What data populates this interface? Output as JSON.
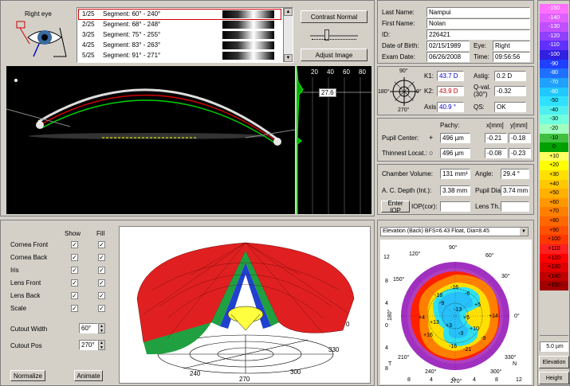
{
  "eye_panel": {
    "label": "Right eye"
  },
  "segments": [
    {
      "num": "1/25",
      "label": "Segment: 60° - 240°",
      "selected": true
    },
    {
      "num": "2/25",
      "label": "Segment: 68° - 248°",
      "selected": false
    },
    {
      "num": "3/25",
      "label": "Segment: 75° - 255°",
      "selected": false
    },
    {
      "num": "4/25",
      "label": "Segment: 83° - 263°",
      "selected": false
    },
    {
      "num": "5/25",
      "label": "Segment: 91° - 271°",
      "selected": false
    }
  ],
  "buttons": {
    "contrast": "Contrast Normal",
    "adjust": "Adjust Image",
    "normalize": "Normalize",
    "animate": "Animate",
    "enter_iop": "Enter IOP"
  },
  "densito": {
    "ticks": [
      "20",
      "40",
      "60",
      "80"
    ],
    "value": "27.6"
  },
  "patient": {
    "last_name_label": "Last Name:",
    "last_name": "Nampui",
    "first_name_label": "First Name:",
    "first_name": "Nolan",
    "id_label": "ID:",
    "id": "226421",
    "dob_label": "Date of Birth:",
    "dob": "02/15/1989",
    "eye_label": "Eye:",
    "eye": "Right",
    "exam_label": "Exam Date:",
    "exam_date": "06/26/2008",
    "time_label": "Time:",
    "time": "09:56:56"
  },
  "kerato": {
    "k1_label": "K1:",
    "k1": "43.7 D",
    "k2_label": "K2:",
    "k2": "43.9 D",
    "axis_label": "Axis:",
    "axis": "40.9 °",
    "astig_label": "Astig:",
    "astig": "0.2 D",
    "qval_label": "Q-val.",
    "qval_sub": "(30°)",
    "qval": "-0.32",
    "qs_label": "QS:",
    "qs": "OK",
    "compass_top": "90°",
    "compass_bottom": "270°",
    "compass_left": "180°",
    "compass_right": "0°"
  },
  "pupil": {
    "pachy_hdr": "Pachy:",
    "x_hdr": "x[mm]",
    "y_hdr": "y[mm]",
    "center_label": "Pupil Center:",
    "center_pachy": "496 µm",
    "center_x": "-0.21",
    "center_y": "-0.18",
    "thin_label": "Thinnest Locat.:",
    "thin_pachy": "496 µm",
    "thin_x": "-0.08",
    "thin_y": "-0.23"
  },
  "chamber": {
    "volume_label": "Chamber Volume:",
    "volume": "131 mm³",
    "angle_label": "Angle:",
    "angle": "29.4 °",
    "depth_label": "A. C. Depth (Int.):",
    "depth": "3.38 mm",
    "pupil_dia_label": "Pupil Dia:",
    "pupil_dia": "3.74 mm",
    "iop_label": "IOP(cor):",
    "iop": "",
    "lens_label": "Lens Th.:",
    "lens": ""
  },
  "layers": {
    "show_hdr": "Show",
    "fill_hdr": "Fill",
    "items": [
      "Cornea Front",
      "Cornea Back",
      "Iris",
      "Lens Front",
      "Lens Back",
      "Scale"
    ],
    "cutout_width_label": "Cutout Width",
    "cutout_width": "60°",
    "cutout_pos_label": "Cutout Pos",
    "cutout_pos": "270°"
  },
  "model3d": {
    "labels": [
      "0",
      "330",
      "300",
      "270",
      "240"
    ]
  },
  "map": {
    "dropdown": "Elevation (Back)  BFS=6.43 Float, Dia=8.45",
    "x_ticks": [
      "12",
      "8",
      "4",
      "0",
      "4",
      "8",
      "12"
    ],
    "y_ticks": [
      "12",
      "8",
      "4",
      "0",
      "4",
      "8",
      "12"
    ],
    "T": "T",
    "N": "N",
    "angles": [
      "90°",
      "60°",
      "30°",
      "0°",
      "330°",
      "300°",
      "270°",
      "240°",
      "210°",
      "180°",
      "150°",
      "120°"
    ],
    "values": [
      "-18",
      "-16",
      "-6",
      "+5",
      "+14",
      "+4",
      "+13",
      "+16",
      "+10",
      "-16",
      "-21",
      "-9",
      "-9",
      "-13",
      "+5",
      "+3",
      "-3"
    ]
  },
  "scale": {
    "values": [
      "-150",
      "-140",
      "-130",
      "-120",
      "-110",
      "-100",
      "-90",
      "-80",
      "-70",
      "-60",
      "-50",
      "-40",
      "-30",
      "-20",
      "-10",
      "0",
      "+10",
      "+20",
      "+30",
      "+40",
      "+50",
      "+60",
      "+70",
      "+80",
      "+90",
      "+100",
      "+110",
      "+120",
      "+130",
      "+140",
      "+150"
    ],
    "colors": [
      "#ff70ff",
      "#e060ff",
      "#c050ff",
      "#9040ff",
      "#6030ff",
      "#3020e0",
      "#2040ff",
      "#2070ff",
      "#20a0ff",
      "#20c8ff",
      "#30e0ff",
      "#50f0f0",
      "#70ffe0",
      "#a0ffc0",
      "#40c040",
      "#00a000",
      "#ffff60",
      "#ffff00",
      "#ffe000",
      "#ffc800",
      "#ffb000",
      "#ff9800",
      "#ff8000",
      "#ff6800",
      "#ff5000",
      "#ff3800",
      "#ff2020",
      "#ff0000",
      "#e00000",
      "#c00000",
      "#a00000"
    ],
    "step": "5.0 µm",
    "mode1": "Elevation",
    "mode2": "Height"
  }
}
